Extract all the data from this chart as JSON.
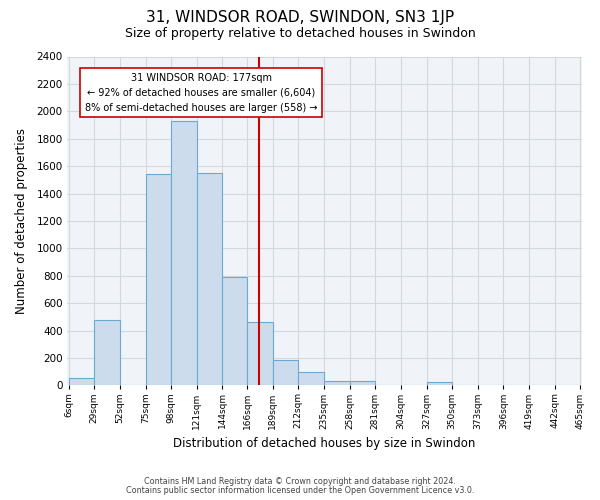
{
  "title": "31, WINDSOR ROAD, SWINDON, SN3 1JP",
  "subtitle": "Size of property relative to detached houses in Swindon",
  "xlabel": "Distribution of detached houses by size in Swindon",
  "ylabel": "Number of detached properties",
  "bin_edges": [
    6,
    29,
    52,
    75,
    98,
    121,
    144,
    166,
    189,
    212,
    235,
    258,
    281,
    304,
    327,
    350,
    373,
    396,
    419,
    442,
    465
  ],
  "bar_heights": [
    55,
    480,
    0,
    1540,
    1930,
    1550,
    790,
    460,
    185,
    95,
    35,
    35,
    0,
    0,
    25,
    0,
    0,
    0,
    0,
    0
  ],
  "bar_color": "#ccdcec",
  "bar_edge_color": "#6aaad4",
  "vline_x": 177,
  "vline_color": "#cc0000",
  "annotation_title": "31 WINDSOR ROAD: 177sqm",
  "annotation_line1": "← 92% of detached houses are smaller (6,604)",
  "annotation_line2": "8% of semi-detached houses are larger (558) →",
  "annotation_box_facecolor": "#ffffff",
  "annotation_box_edgecolor": "#cc0000",
  "ylim": [
    0,
    2400
  ],
  "yticks": [
    0,
    200,
    400,
    600,
    800,
    1000,
    1200,
    1400,
    1600,
    1800,
    2000,
    2200,
    2400
  ],
  "fig_facecolor": "#ffffff",
  "ax_facecolor": "#f0f4f8",
  "grid_color": "#d0d8e0",
  "footer_line1": "Contains HM Land Registry data © Crown copyright and database right 2024.",
  "footer_line2": "Contains public sector information licensed under the Open Government Licence v3.0."
}
